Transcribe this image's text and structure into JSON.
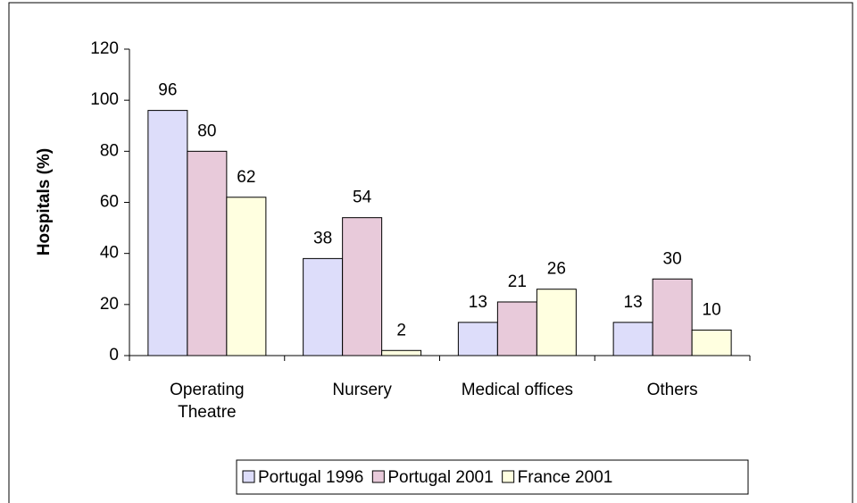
{
  "chart_data": {
    "type": "bar",
    "y_label": "Hospitals (%)",
    "categories": [
      "Operating Theatre",
      "Nursery",
      "Medical offices",
      "Others"
    ],
    "series": [
      {
        "name": "Portugal 1996",
        "color": "#ddddfa",
        "values": [
          96,
          38,
          13,
          13
        ]
      },
      {
        "name": "Portugal 2001",
        "color": "#e8cada",
        "values": [
          80,
          54,
          21,
          30
        ]
      },
      {
        "name": "France 2001",
        "color": "#ffffe0",
        "values": [
          62,
          2,
          26,
          10
        ]
      }
    ],
    "ylim": [
      0,
      120
    ],
    "yticks": [
      0,
      20,
      40,
      60,
      80,
      100,
      120
    ],
    "grid": false,
    "legend": "bottom"
  }
}
